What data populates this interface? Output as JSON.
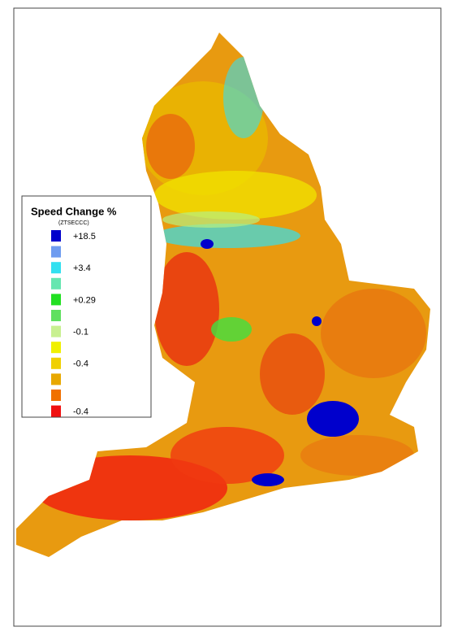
{
  "legend": {
    "title": "Speed Change %",
    "subtitle": "(ZTSECCC)",
    "entries": [
      {
        "colors": [
          "#0000cc",
          "#6f9cf0"
        ],
        "label": "+18.5"
      },
      {
        "colors": [
          "#33e0f0",
          "#66e6b0"
        ],
        "label": "+3.4"
      },
      {
        "colors": [
          "#22e022",
          "#60e060"
        ],
        "label": "+0.29"
      },
      {
        "colors": [
          "#c8f090",
          "#f0f000"
        ],
        "label": "-0.1"
      },
      {
        "colors": [
          "#f0d000",
          "#e8a800"
        ],
        "label": "-0.4"
      },
      {
        "colors": [
          "#f07000",
          "#f01010"
        ],
        "label": "-0.4"
      }
    ]
  }
}
